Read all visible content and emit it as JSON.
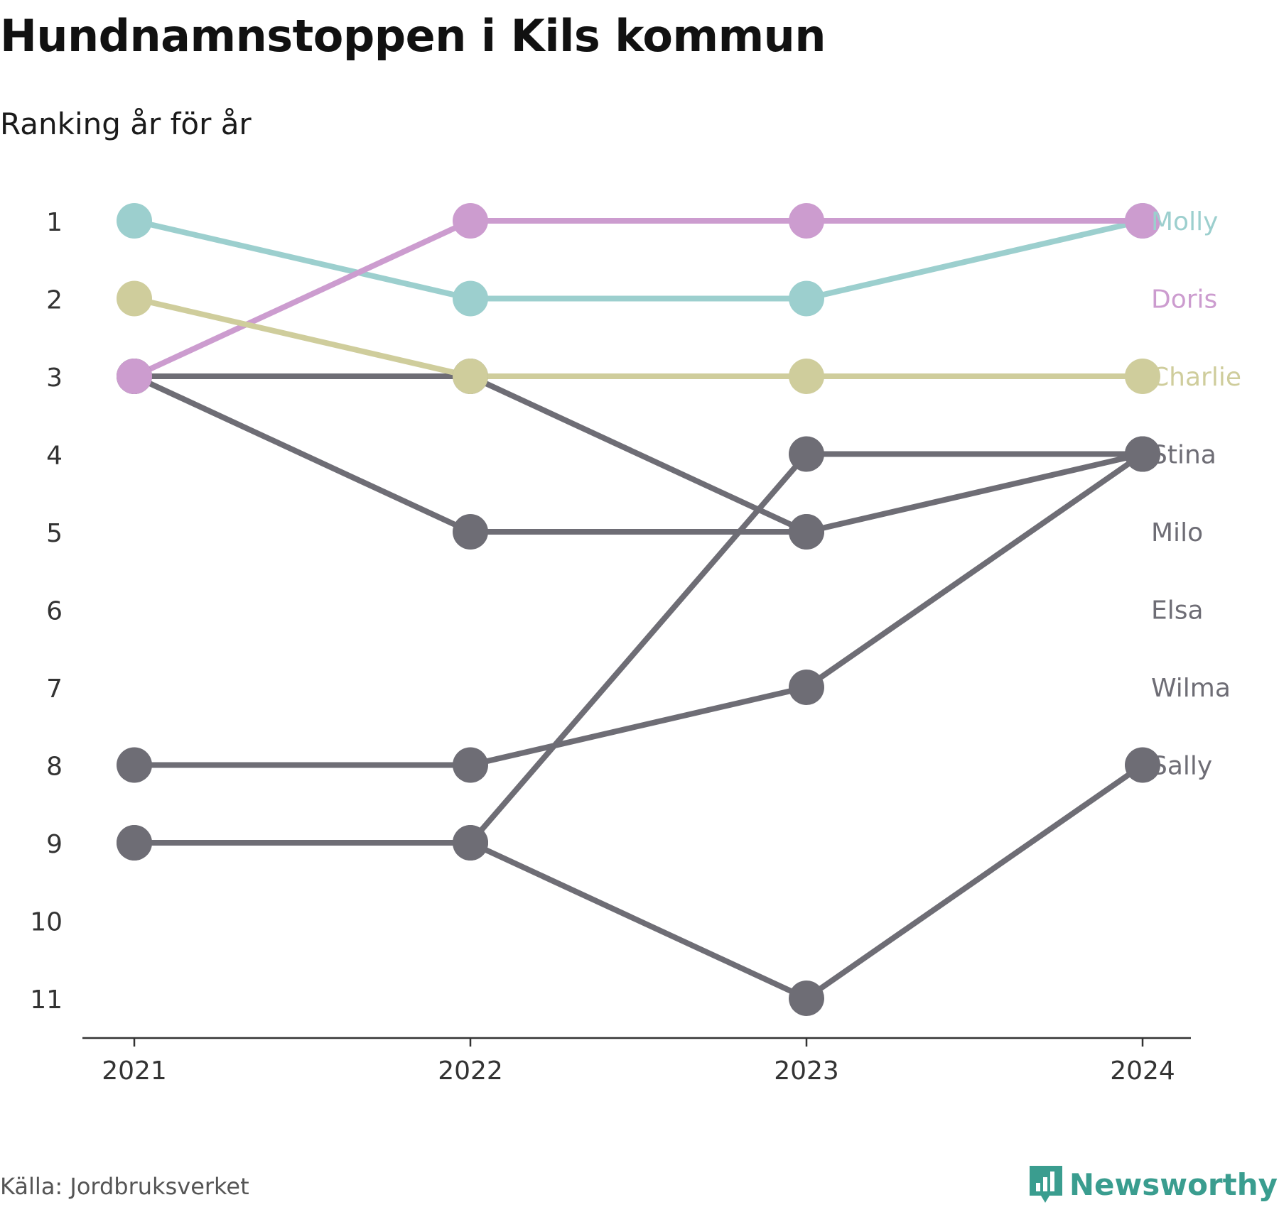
{
  "title": "Hundnamnstoppen i Kils kommun",
  "subtitle": "Ranking år för år",
  "source": "Källa: Jordbruksverket",
  "brand": {
    "name": "Newsworthy",
    "icon": "bar-chart-speech-icon",
    "color": "#3a9d8f"
  },
  "chart_data": {
    "type": "line",
    "x": [
      "2021",
      "2022",
      "2023",
      "2024"
    ],
    "y_ticks": [
      1,
      2,
      3,
      4,
      5,
      6,
      7,
      8,
      9,
      10,
      11
    ],
    "ylim": [
      1,
      11
    ],
    "y_reversed": true,
    "grid": false,
    "series": [
      {
        "name": "Molly",
        "values": [
          1,
          2,
          2,
          1
        ],
        "color": "#9ccfce"
      },
      {
        "name": "Doris",
        "values": [
          3,
          1,
          1,
          1
        ],
        "color": "#cc9ccf"
      },
      {
        "name": "Charlie",
        "values": [
          2,
          3,
          3,
          3
        ],
        "color": "#cfcd9c"
      },
      {
        "name": "Stina",
        "values": [
          9,
          9,
          4,
          4
        ],
        "color": "#6e6d75"
      },
      {
        "name": "Milo",
        "values": [
          3,
          3,
          5,
          4
        ],
        "color": "#6e6d75"
      },
      {
        "name": "Elsa",
        "values": [
          3,
          5,
          5,
          null
        ],
        "color": "#6e6d75"
      },
      {
        "name": "Wilma",
        "values": [
          8,
          8,
          7,
          4
        ],
        "color": "#6e6d75"
      },
      {
        "name": "Sally",
        "values": [
          9,
          9,
          11,
          8
        ],
        "color": "#6e6d75"
      }
    ]
  }
}
